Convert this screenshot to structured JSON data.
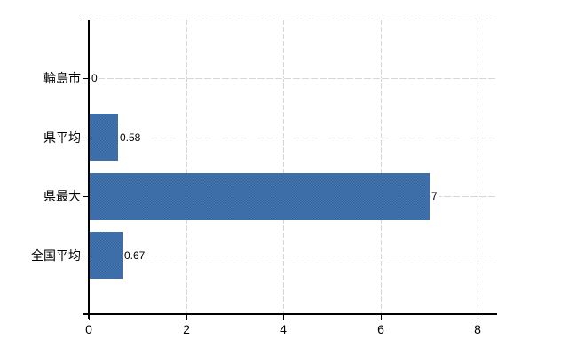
{
  "chart_data": {
    "type": "bar",
    "orientation": "horizontal",
    "title": "",
    "xlabel": "",
    "ylabel": "",
    "categories": [
      "輪島市",
      "県平均",
      "県最大",
      "全国平均"
    ],
    "values": [
      0,
      0.58,
      7,
      0.67
    ],
    "value_labels": [
      "0",
      "0.58",
      "7",
      "0.67"
    ],
    "xlim": [
      0,
      8
    ],
    "xticks": [
      0,
      2,
      4,
      6,
      8
    ],
    "xtick_labels": [
      "0",
      "2",
      "4",
      "6",
      "8"
    ],
    "grid": true,
    "legend": false,
    "colors": {
      "bar": "#3c6dab",
      "bar_dither_light": "#4677b2",
      "bar_dither_dark": "#35659f",
      "grid": "#d6d6d6",
      "axis": "#000000",
      "text": "#000000",
      "background": "#ffffff"
    }
  }
}
